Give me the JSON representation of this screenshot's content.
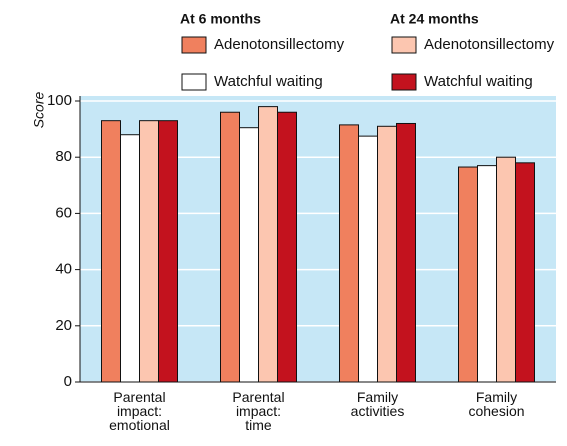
{
  "chart_data": {
    "type": "bar",
    "ylabel": "Score",
    "legend_titles": [
      "At 6 months",
      "At 24 months"
    ],
    "categories": [
      "Parental\nimpact:\nemotional",
      "Parental\nimpact:\ntime",
      "Family\nactivities",
      "Family\ncohesion"
    ],
    "series": [
      {
        "name": "Adenotonsillectomy",
        "color": "#f0805e",
        "values": [
          93,
          96,
          91.5,
          76.5
        ]
      },
      {
        "name": "Watchful waiting",
        "color": "#ffffff",
        "values": [
          88,
          90.5,
          87.5,
          77
        ]
      },
      {
        "name": "Adenotonsillectomy",
        "color": "#fcc6b0",
        "values": [
          93,
          98,
          91,
          80
        ]
      },
      {
        "name": "Watchful waiting",
        "color": "#c3121e",
        "values": [
          93,
          96,
          92,
          78
        ]
      }
    ],
    "ylim": [
      0,
      100
    ],
    "yticks": [
      0,
      20,
      40,
      60,
      80,
      100
    ],
    "grid": true
  }
}
